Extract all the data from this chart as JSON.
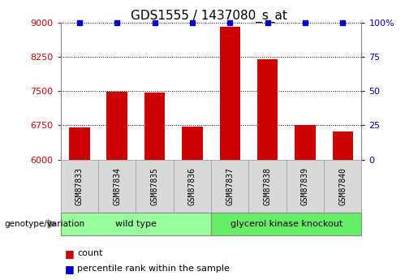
{
  "title": "GDS1555 / 1437080_s_at",
  "samples": [
    "GSM87833",
    "GSM87834",
    "GSM87835",
    "GSM87836",
    "GSM87837",
    "GSM87838",
    "GSM87839",
    "GSM87840"
  ],
  "counts": [
    6700,
    7480,
    7460,
    6720,
    8900,
    8200,
    6760,
    6620
  ],
  "percentile_ranks": [
    100,
    100,
    100,
    100,
    100,
    100,
    100,
    100
  ],
  "group_labels": [
    "wild type",
    "glycerol kinase knockout"
  ],
  "bar_color": "#cc0000",
  "dot_color": "#0000cc",
  "ylim_left": [
    6000,
    9000
  ],
  "yticks_left": [
    6000,
    6750,
    7500,
    8250,
    9000
  ],
  "ylim_right": [
    0,
    100
  ],
  "yticks_right": [
    0,
    25,
    50,
    75,
    100
  ],
  "ylabel_left_color": "#cc0000",
  "ylabel_right_color": "#0000cc",
  "grid_color": "#000000",
  "tick_label_bg": "#d8d8d8",
  "wt_color": "#99ff99",
  "gk_color": "#66ee66",
  "legend_count_color": "#cc0000",
  "legend_pct_color": "#0000cc"
}
